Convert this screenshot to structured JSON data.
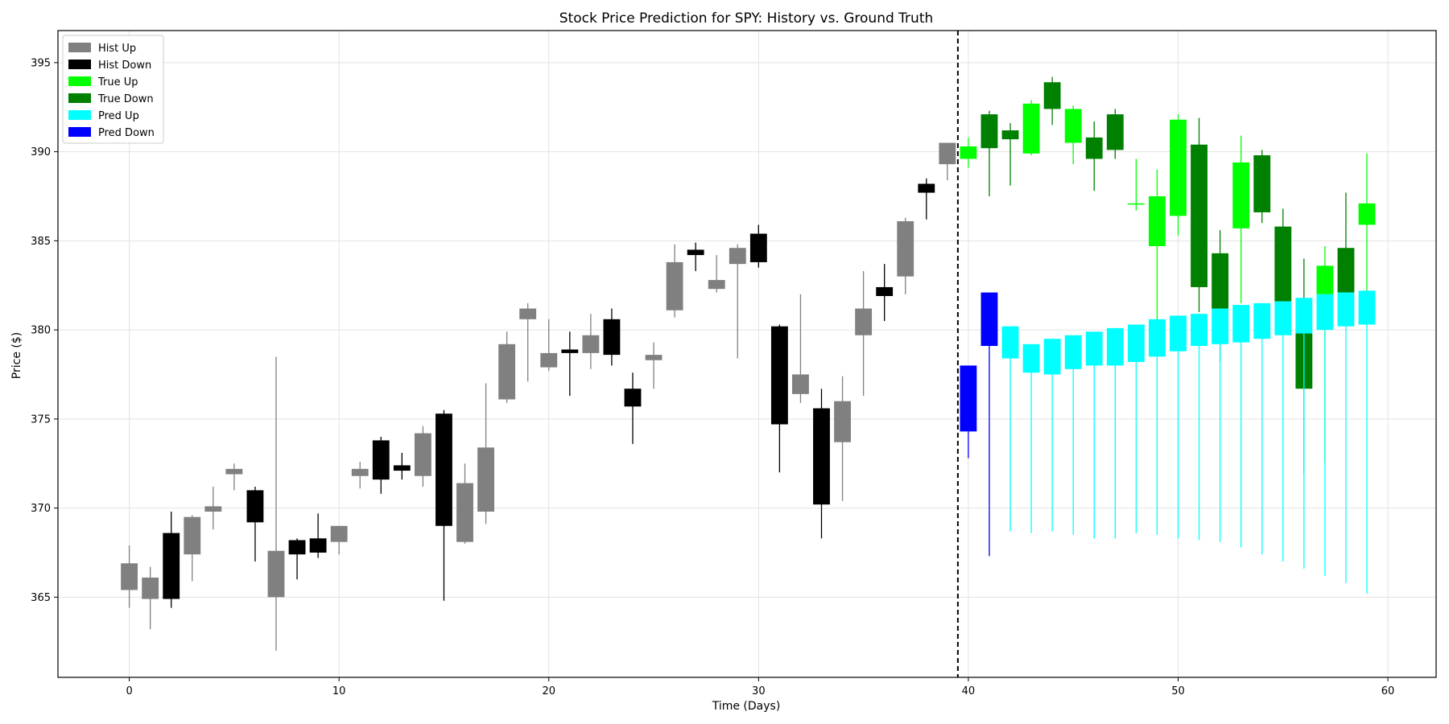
{
  "chart_data": {
    "type": "candlestick",
    "title": "Stock Price Prediction for SPY: History vs. Ground Truth",
    "xlabel": "Time (Days)",
    "ylabel": "Price ($)",
    "xlim": [
      -3.4,
      62.3
    ],
    "ylim": [
      360.5,
      396.8
    ],
    "xticks": [
      0,
      10,
      20,
      30,
      40,
      50,
      60
    ],
    "yticks": [
      365,
      370,
      375,
      380,
      385,
      390,
      395
    ],
    "grid": true,
    "split_line_x": 39.5,
    "legend": {
      "placement": "top-left",
      "entries": [
        {
          "label": "Hist Up",
          "color": "#808080"
        },
        {
          "label": "Hist Down",
          "color": "#000000"
        },
        {
          "label": "True Up",
          "color": "#00ff00"
        },
        {
          "label": "True Down",
          "color": "#008000"
        },
        {
          "label": "Pred Up",
          "color": "#00ffff"
        },
        {
          "label": "Pred Down",
          "color": "#0000ff"
        }
      ]
    },
    "series": [
      {
        "name": "Hist",
        "up_color": "#808080",
        "down_color": "#000000",
        "ohlc": [
          {
            "x": 0,
            "o": 365.4,
            "h": 367.9,
            "l": 364.4,
            "c": 366.9
          },
          {
            "x": 1,
            "o": 364.9,
            "h": 366.7,
            "l": 363.2,
            "c": 366.1
          },
          {
            "x": 2,
            "o": 368.6,
            "h": 369.8,
            "l": 364.4,
            "c": 364.9
          },
          {
            "x": 3,
            "o": 367.4,
            "h": 369.6,
            "l": 365.9,
            "c": 369.5
          },
          {
            "x": 4,
            "o": 369.8,
            "h": 371.2,
            "l": 368.8,
            "c": 370.1
          },
          {
            "x": 5,
            "o": 371.9,
            "h": 372.5,
            "l": 371.0,
            "c": 372.2
          },
          {
            "x": 6,
            "o": 371.0,
            "h": 371.2,
            "l": 367.0,
            "c": 369.2
          },
          {
            "x": 7,
            "o": 365.0,
            "h": 378.5,
            "l": 362.0,
            "c": 367.6
          },
          {
            "x": 8,
            "o": 368.2,
            "h": 368.3,
            "l": 366.0,
            "c": 367.4
          },
          {
            "x": 9,
            "o": 368.3,
            "h": 369.7,
            "l": 367.2,
            "c": 367.5
          },
          {
            "x": 10,
            "o": 368.1,
            "h": 369.0,
            "l": 367.4,
            "c": 369.0
          },
          {
            "x": 11,
            "o": 371.8,
            "h": 372.6,
            "l": 371.1,
            "c": 372.2
          },
          {
            "x": 12,
            "o": 373.8,
            "h": 374.0,
            "l": 370.8,
            "c": 371.6
          },
          {
            "x": 13,
            "o": 372.4,
            "h": 373.1,
            "l": 371.6,
            "c": 372.1
          },
          {
            "x": 14,
            "o": 371.8,
            "h": 374.6,
            "l": 371.2,
            "c": 374.2
          },
          {
            "x": 15,
            "o": 375.3,
            "h": 375.5,
            "l": 364.8,
            "c": 369.0
          },
          {
            "x": 16,
            "o": 368.1,
            "h": 372.5,
            "l": 368.0,
            "c": 371.4
          },
          {
            "x": 17,
            "o": 369.8,
            "h": 377.0,
            "l": 369.1,
            "c": 373.4
          },
          {
            "x": 18,
            "o": 376.1,
            "h": 379.9,
            "l": 375.9,
            "c": 379.2
          },
          {
            "x": 19,
            "o": 380.6,
            "h": 381.5,
            "l": 377.1,
            "c": 381.2
          },
          {
            "x": 20,
            "o": 377.9,
            "h": 380.6,
            "l": 377.7,
            "c": 378.7
          },
          {
            "x": 21,
            "o": 378.9,
            "h": 379.9,
            "l": 376.3,
            "c": 378.7
          },
          {
            "x": 22,
            "o": 378.7,
            "h": 380.9,
            "l": 377.8,
            "c": 379.7
          },
          {
            "x": 23,
            "o": 380.6,
            "h": 381.2,
            "l": 378.0,
            "c": 378.6
          },
          {
            "x": 24,
            "o": 376.7,
            "h": 377.6,
            "l": 373.6,
            "c": 375.7
          },
          {
            "x": 25,
            "o": 378.3,
            "h": 379.3,
            "l": 376.7,
            "c": 378.6
          },
          {
            "x": 26,
            "o": 381.1,
            "h": 384.8,
            "l": 380.7,
            "c": 383.8
          },
          {
            "x": 27,
            "o": 384.5,
            "h": 384.9,
            "l": 383.3,
            "c": 384.2
          },
          {
            "x": 28,
            "o": 382.3,
            "h": 384.2,
            "l": 382.1,
            "c": 382.8
          },
          {
            "x": 29,
            "o": 383.7,
            "h": 384.8,
            "l": 378.4,
            "c": 384.6
          },
          {
            "x": 30,
            "o": 385.4,
            "h": 385.9,
            "l": 383.5,
            "c": 383.8
          },
          {
            "x": 31,
            "o": 380.2,
            "h": 380.3,
            "l": 372.0,
            "c": 374.7
          },
          {
            "x": 32,
            "o": 376.4,
            "h": 382.0,
            "l": 375.9,
            "c": 377.5
          },
          {
            "x": 33,
            "o": 375.6,
            "h": 376.7,
            "l": 368.3,
            "c": 370.2
          },
          {
            "x": 34,
            "o": 373.7,
            "h": 377.4,
            "l": 370.4,
            "c": 376.0
          },
          {
            "x": 35,
            "o": 379.7,
            "h": 383.3,
            "l": 376.3,
            "c": 381.2
          },
          {
            "x": 36,
            "o": 382.4,
            "h": 383.7,
            "l": 380.5,
            "c": 381.9
          },
          {
            "x": 37,
            "o": 383.0,
            "h": 386.3,
            "l": 382.0,
            "c": 386.1
          },
          {
            "x": 38,
            "o": 388.2,
            "h": 388.5,
            "l": 386.2,
            "c": 387.7
          },
          {
            "x": 39,
            "o": 389.3,
            "h": 390.5,
            "l": 388.4,
            "c": 390.5
          }
        ]
      },
      {
        "name": "True",
        "up_color": "#00ff00",
        "down_color": "#008000",
        "ohlc": [
          {
            "x": 40,
            "o": 389.6,
            "h": 390.8,
            "l": 389.1,
            "c": 390.3
          },
          {
            "x": 41,
            "o": 392.1,
            "h": 392.3,
            "l": 387.5,
            "c": 390.2
          },
          {
            "x": 42,
            "o": 391.2,
            "h": 391.6,
            "l": 388.1,
            "c": 390.7
          },
          {
            "x": 43,
            "o": 389.9,
            "h": 392.9,
            "l": 389.8,
            "c": 392.7
          },
          {
            "x": 44,
            "o": 393.9,
            "h": 394.2,
            "l": 391.5,
            "c": 392.4
          },
          {
            "x": 45,
            "o": 390.5,
            "h": 392.6,
            "l": 389.3,
            "c": 392.4
          },
          {
            "x": 46,
            "o": 390.8,
            "h": 391.7,
            "l": 387.8,
            "c": 389.6
          },
          {
            "x": 47,
            "o": 392.1,
            "h": 392.4,
            "l": 389.6,
            "c": 390.1
          },
          {
            "x": 48,
            "o": 387.1,
            "h": 389.6,
            "l": 386.7,
            "c": 387.1
          },
          {
            "x": 49,
            "o": 384.7,
            "h": 389.0,
            "l": 379.9,
            "c": 387.5
          },
          {
            "x": 50,
            "o": 386.4,
            "h": 392.1,
            "l": 385.3,
            "c": 391.8
          },
          {
            "x": 51,
            "o": 390.4,
            "h": 391.9,
            "l": 381.0,
            "c": 382.4
          },
          {
            "x": 52,
            "o": 384.3,
            "h": 385.6,
            "l": 378.2,
            "c": 381.2
          },
          {
            "x": 53,
            "o": 385.7,
            "h": 390.9,
            "l": 381.5,
            "c": 389.4
          },
          {
            "x": 54,
            "o": 389.8,
            "h": 390.1,
            "l": 386.0,
            "c": 386.6
          },
          {
            "x": 55,
            "o": 385.8,
            "h": 386.8,
            "l": 381.3,
            "c": 381.6
          },
          {
            "x": 56,
            "o": 379.8,
            "h": 384.0,
            "l": 371.9,
            "c": 376.7
          },
          {
            "x": 57,
            "o": 382.0,
            "h": 384.7,
            "l": 372.6,
            "c": 383.6
          },
          {
            "x": 58,
            "o": 384.6,
            "h": 387.7,
            "l": 381.4,
            "c": 382.1
          },
          {
            "x": 59,
            "o": 385.9,
            "h": 389.9,
            "l": 381.8,
            "c": 387.1
          }
        ]
      },
      {
        "name": "Pred",
        "up_color": "#00ffff",
        "down_color": "#0000ff",
        "ohlc": [
          {
            "x": 40,
            "o": 378.0,
            "h": 378.0,
            "l": 372.8,
            "c": 374.3
          },
          {
            "x": 41,
            "o": 382.1,
            "h": 382.1,
            "l": 367.3,
            "c": 379.1
          },
          {
            "x": 42,
            "o": 378.4,
            "h": 380.2,
            "l": 368.7,
            "c": 380.2
          },
          {
            "x": 43,
            "o": 377.6,
            "h": 379.2,
            "l": 368.6,
            "c": 379.2
          },
          {
            "x": 44,
            "o": 377.5,
            "h": 379.5,
            "l": 368.7,
            "c": 379.5
          },
          {
            "x": 45,
            "o": 377.8,
            "h": 379.7,
            "l": 368.5,
            "c": 379.7
          },
          {
            "x": 46,
            "o": 378.0,
            "h": 379.9,
            "l": 368.3,
            "c": 379.9
          },
          {
            "x": 47,
            "o": 378.0,
            "h": 380.1,
            "l": 368.3,
            "c": 380.1
          },
          {
            "x": 48,
            "o": 378.2,
            "h": 380.3,
            "l": 368.6,
            "c": 380.3
          },
          {
            "x": 49,
            "o": 378.5,
            "h": 380.6,
            "l": 368.5,
            "c": 380.6
          },
          {
            "x": 50,
            "o": 378.8,
            "h": 380.8,
            "l": 368.3,
            "c": 380.8
          },
          {
            "x": 51,
            "o": 379.1,
            "h": 380.9,
            "l": 368.2,
            "c": 380.9
          },
          {
            "x": 52,
            "o": 379.2,
            "h": 381.2,
            "l": 368.1,
            "c": 381.2
          },
          {
            "x": 53,
            "o": 379.3,
            "h": 381.4,
            "l": 367.8,
            "c": 381.4
          },
          {
            "x": 54,
            "o": 379.5,
            "h": 381.5,
            "l": 367.4,
            "c": 381.5
          },
          {
            "x": 55,
            "o": 379.7,
            "h": 381.6,
            "l": 367.0,
            "c": 381.6
          },
          {
            "x": 56,
            "o": 379.8,
            "h": 381.8,
            "l": 366.6,
            "c": 381.8
          },
          {
            "x": 57,
            "o": 380.0,
            "h": 382.0,
            "l": 366.2,
            "c": 382.0
          },
          {
            "x": 58,
            "o": 380.2,
            "h": 382.1,
            "l": 365.8,
            "c": 382.1
          },
          {
            "x": 59,
            "o": 380.3,
            "h": 382.2,
            "l": 365.2,
            "c": 382.2
          }
        ]
      }
    ]
  }
}
